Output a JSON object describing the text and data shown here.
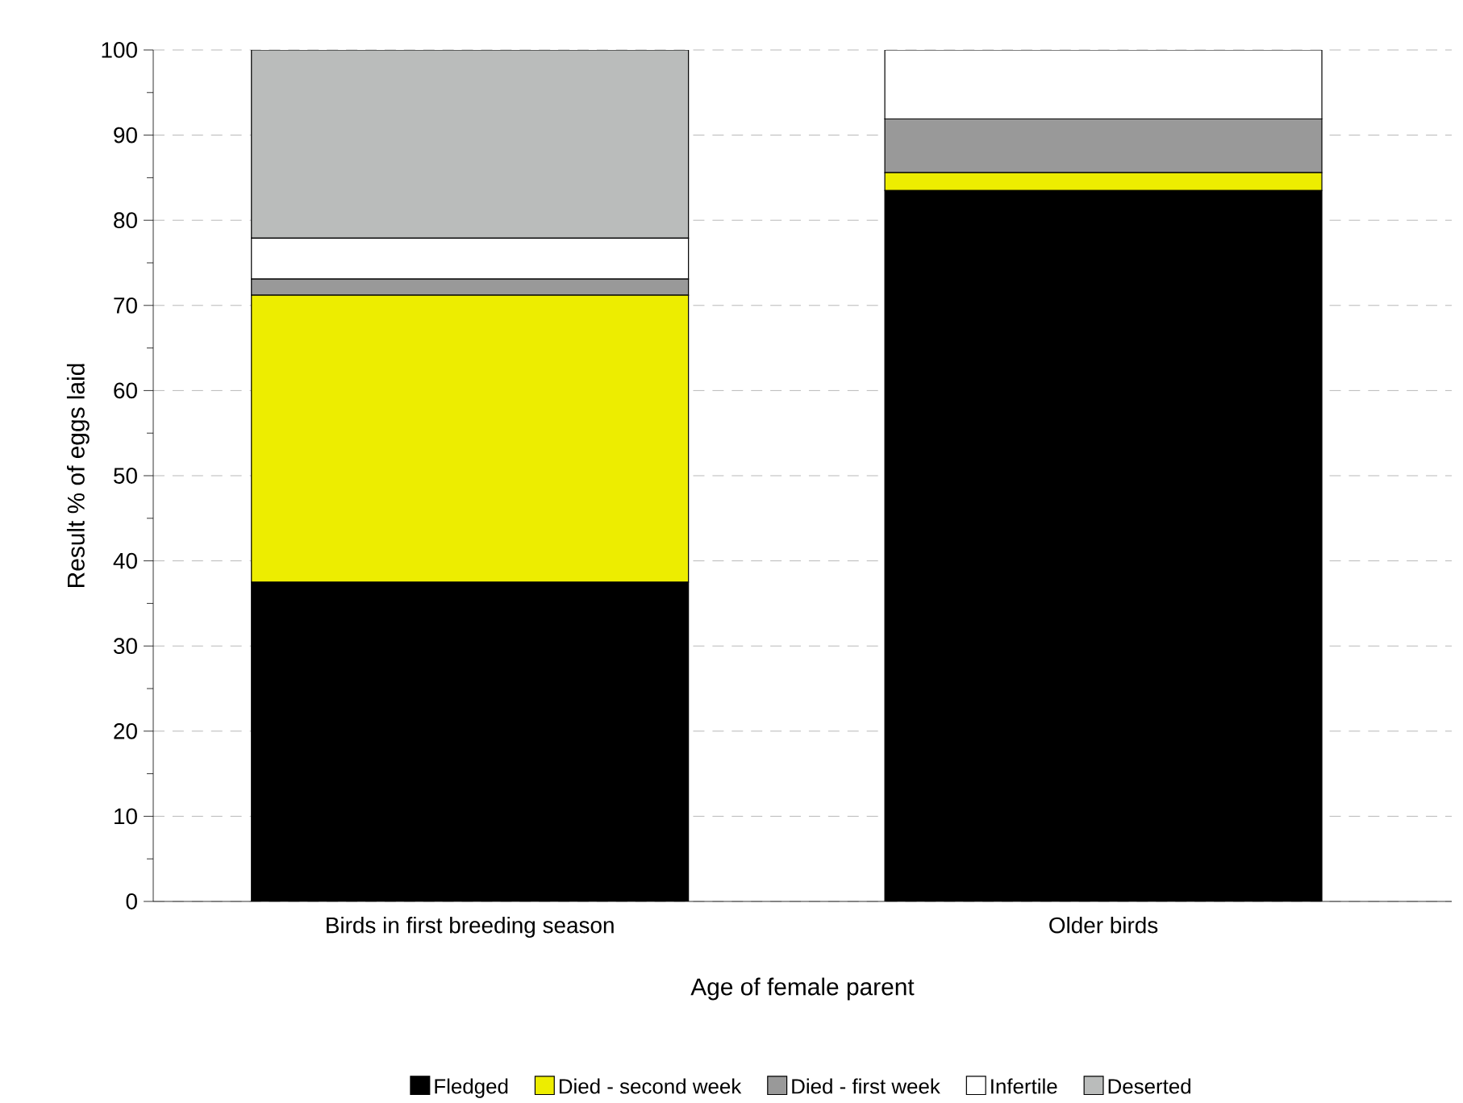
{
  "chart_data": {
    "type": "bar",
    "stacked": true,
    "xlabel": "Age of female parent",
    "ylabel": "Result % of eggs laid",
    "categories": [
      "Birds in first breeding season",
      "Older birds"
    ],
    "series": [
      {
        "name": "Fledged",
        "color": "#000000",
        "values": [
          37.5,
          83.5
        ]
      },
      {
        "name": "Died - second week",
        "color": "#eded00",
        "values": [
          33.7,
          2.1
        ]
      },
      {
        "name": "Died - first week",
        "color": "#999999",
        "values": [
          1.9,
          6.3
        ]
      },
      {
        "name": "Infertile",
        "color": "#ffffff",
        "values": [
          4.8,
          8.1
        ]
      },
      {
        "name": "Deserted",
        "color": "#babcbb",
        "values": [
          22.1,
          0
        ]
      }
    ],
    "ylim": [
      0,
      100
    ],
    "yticks": [
      0,
      10,
      20,
      30,
      40,
      50,
      60,
      70,
      80,
      90,
      100
    ],
    "grid": "y",
    "legend": "bottom"
  }
}
